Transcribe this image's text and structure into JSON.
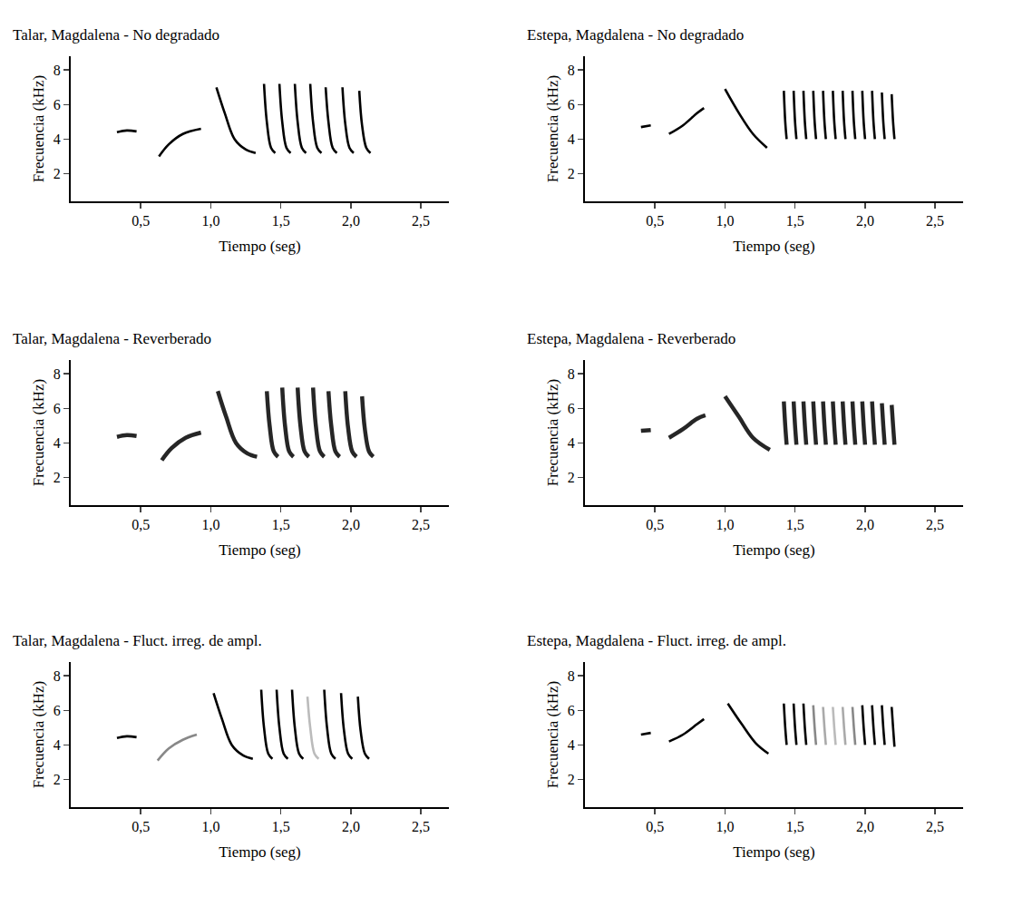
{
  "chart_data": [
    {
      "type": "line",
      "title": "Talar, Magdalena - No degradado",
      "xlabel": "Tiempo (seg)",
      "ylabel": "Frecuencia (kHz)",
      "xlim": [
        0,
        2.7
      ],
      "ylim": [
        0.4,
        8.8
      ],
      "xticks": [
        {
          "value": 0.5,
          "label": "0,5"
        },
        {
          "value": 1.0,
          "label": "1,0"
        },
        {
          "value": 1.5,
          "label": "1,5"
        },
        {
          "value": 2.0,
          "label": "2,0"
        },
        {
          "value": 2.5,
          "label": "2,5"
        }
      ],
      "yticks": [
        2,
        4,
        6,
        8
      ],
      "color": "#000000",
      "series": [
        {
          "x": [
            0.33,
            0.4,
            0.47
          ],
          "values": [
            4.4,
            4.5,
            4.45
          ]
        },
        {
          "x": [
            0.63,
            0.7,
            0.8,
            0.93
          ],
          "values": [
            3.0,
            3.7,
            4.3,
            4.6
          ]
        },
        {
          "x": [
            1.04,
            1.1,
            1.17,
            1.25,
            1.32
          ],
          "values": [
            7.0,
            5.5,
            4.0,
            3.4,
            3.2
          ]
        },
        {
          "x": [
            1.38,
            1.4,
            1.43,
            1.46
          ],
          "values": [
            7.2,
            5.0,
            3.5,
            3.2
          ]
        },
        {
          "x": [
            1.49,
            1.51,
            1.54,
            1.57
          ],
          "values": [
            7.2,
            5.0,
            3.5,
            3.2
          ]
        },
        {
          "x": [
            1.6,
            1.62,
            1.65,
            1.68
          ],
          "values": [
            7.2,
            5.0,
            3.5,
            3.2
          ]
        },
        {
          "x": [
            1.71,
            1.73,
            1.76,
            1.79
          ],
          "values": [
            7.2,
            5.0,
            3.5,
            3.2
          ]
        },
        {
          "x": [
            1.82,
            1.84,
            1.87,
            1.9
          ],
          "values": [
            7.0,
            5.0,
            3.5,
            3.2
          ]
        },
        {
          "x": [
            1.94,
            1.96,
            1.99,
            2.02
          ],
          "values": [
            7.0,
            4.9,
            3.5,
            3.2
          ]
        },
        {
          "x": [
            2.06,
            2.08,
            2.11,
            2.14
          ],
          "values": [
            6.8,
            4.8,
            3.5,
            3.2
          ]
        }
      ]
    },
    {
      "type": "line",
      "title": "Estepa, Magdalena - No degradado",
      "xlabel": "Tiempo (seg)",
      "ylabel": "Frecuencia (kHz)",
      "xlim": [
        0,
        2.7
      ],
      "ylim": [
        0.4,
        8.8
      ],
      "xticks": [
        {
          "value": 0.5,
          "label": "0,5"
        },
        {
          "value": 1.0,
          "label": "1,0"
        },
        {
          "value": 1.5,
          "label": "1,5"
        },
        {
          "value": 2.0,
          "label": "2,0"
        },
        {
          "value": 2.5,
          "label": "2,5"
        }
      ],
      "yticks": [
        2,
        4,
        6,
        8
      ],
      "color": "#000000",
      "series": [
        {
          "x": [
            0.4,
            0.47
          ],
          "values": [
            4.7,
            4.8
          ]
        },
        {
          "x": [
            0.6,
            0.7,
            0.8,
            0.85
          ],
          "values": [
            4.3,
            4.8,
            5.5,
            5.8
          ]
        },
        {
          "x": [
            1.0,
            1.1,
            1.2,
            1.3
          ],
          "values": [
            6.9,
            5.5,
            4.3,
            3.5
          ]
        },
        {
          "x": [
            1.42,
            1.43,
            1.44
          ],
          "values": [
            6.8,
            5.0,
            4.0
          ]
        },
        {
          "x": [
            1.49,
            1.5,
            1.51
          ],
          "values": [
            6.8,
            5.0,
            4.0
          ]
        },
        {
          "x": [
            1.56,
            1.57,
            1.58
          ],
          "values": [
            6.8,
            5.0,
            4.0
          ]
        },
        {
          "x": [
            1.63,
            1.64,
            1.65
          ],
          "values": [
            6.8,
            5.0,
            4.0
          ]
        },
        {
          "x": [
            1.7,
            1.71,
            1.72
          ],
          "values": [
            6.8,
            5.0,
            4.0
          ]
        },
        {
          "x": [
            1.77,
            1.78,
            1.79
          ],
          "values": [
            6.8,
            5.0,
            4.0
          ]
        },
        {
          "x": [
            1.84,
            1.85,
            1.86
          ],
          "values": [
            6.8,
            5.0,
            4.0
          ]
        },
        {
          "x": [
            1.91,
            1.92,
            1.93
          ],
          "values": [
            6.8,
            5.0,
            4.0
          ]
        },
        {
          "x": [
            1.98,
            1.99,
            2.0
          ],
          "values": [
            6.8,
            5.0,
            4.0
          ]
        },
        {
          "x": [
            2.05,
            2.06,
            2.07
          ],
          "values": [
            6.8,
            5.0,
            4.0
          ]
        },
        {
          "x": [
            2.12,
            2.13,
            2.14
          ],
          "values": [
            6.7,
            5.0,
            4.0
          ]
        },
        {
          "x": [
            2.19,
            2.2,
            2.21
          ],
          "values": [
            6.6,
            5.0,
            4.0
          ]
        }
      ]
    },
    {
      "type": "line",
      "title": "Talar, Magdalena - Reverberado",
      "xlabel": "Tiempo (seg)",
      "ylabel": "Frecuencia (kHz)",
      "xlim": [
        0,
        2.7
      ],
      "ylim": [
        0.4,
        8.8
      ],
      "xticks": [
        {
          "value": 0.5,
          "label": "0,5"
        },
        {
          "value": 1.0,
          "label": "1,0"
        },
        {
          "value": 1.5,
          "label": "1,5"
        },
        {
          "value": 2.0,
          "label": "2,0"
        },
        {
          "value": 2.5,
          "label": "2,5"
        }
      ],
      "yticks": [
        2,
        4,
        6,
        8
      ],
      "color": "#000000",
      "series": [
        {
          "x": [
            0.33,
            0.4,
            0.47
          ],
          "values": [
            4.35,
            4.45,
            4.4
          ]
        },
        {
          "x": [
            0.65,
            0.72,
            0.82,
            0.93
          ],
          "values": [
            3.0,
            3.7,
            4.3,
            4.6
          ]
        },
        {
          "x": [
            1.05,
            1.11,
            1.18,
            1.26,
            1.33
          ],
          "values": [
            7.0,
            5.5,
            4.0,
            3.4,
            3.2
          ]
        },
        {
          "x": [
            1.4,
            1.42,
            1.45,
            1.48
          ],
          "values": [
            7.0,
            5.0,
            3.5,
            3.2
          ]
        },
        {
          "x": [
            1.51,
            1.53,
            1.56,
            1.59
          ],
          "values": [
            7.2,
            5.0,
            3.5,
            3.2
          ]
        },
        {
          "x": [
            1.62,
            1.64,
            1.67,
            1.7
          ],
          "values": [
            7.2,
            5.0,
            3.5,
            3.2
          ]
        },
        {
          "x": [
            1.73,
            1.75,
            1.78,
            1.81
          ],
          "values": [
            7.2,
            5.0,
            3.5,
            3.2
          ]
        },
        {
          "x": [
            1.84,
            1.86,
            1.89,
            1.92
          ],
          "values": [
            7.0,
            5.0,
            3.5,
            3.2
          ]
        },
        {
          "x": [
            1.96,
            1.98,
            2.01,
            2.04
          ],
          "values": [
            7.0,
            4.9,
            3.5,
            3.2
          ]
        },
        {
          "x": [
            2.08,
            2.1,
            2.13,
            2.16
          ],
          "values": [
            6.7,
            4.8,
            3.5,
            3.2
          ]
        }
      ]
    },
    {
      "type": "line",
      "title": "Estepa, Magdalena - Reverberado",
      "xlabel": "Tiempo (seg)",
      "ylabel": "Frecuencia (kHz)",
      "xlim": [
        0,
        2.7
      ],
      "ylim": [
        0.4,
        8.8
      ],
      "xticks": [
        {
          "value": 0.5,
          "label": "0,5"
        },
        {
          "value": 1.0,
          "label": "1,0"
        },
        {
          "value": 1.5,
          "label": "1,5"
        },
        {
          "value": 2.0,
          "label": "2,0"
        },
        {
          "value": 2.5,
          "label": "2,5"
        }
      ],
      "yticks": [
        2,
        4,
        6,
        8
      ],
      "color": "#000000",
      "series": [
        {
          "x": [
            0.4,
            0.47
          ],
          "values": [
            4.7,
            4.75
          ]
        },
        {
          "x": [
            0.6,
            0.7,
            0.8,
            0.86
          ],
          "values": [
            4.3,
            4.8,
            5.4,
            5.6
          ]
        },
        {
          "x": [
            1.0,
            1.1,
            1.2,
            1.32
          ],
          "values": [
            6.7,
            5.5,
            4.3,
            3.6
          ]
        },
        {
          "x": [
            1.42,
            1.43,
            1.44
          ],
          "values": [
            6.4,
            5.0,
            3.9
          ]
        },
        {
          "x": [
            1.49,
            1.5,
            1.51
          ],
          "values": [
            6.4,
            5.0,
            3.9
          ]
        },
        {
          "x": [
            1.56,
            1.57,
            1.58
          ],
          "values": [
            6.4,
            5.0,
            3.9
          ]
        },
        {
          "x": [
            1.63,
            1.64,
            1.65
          ],
          "values": [
            6.4,
            5.0,
            3.9
          ]
        },
        {
          "x": [
            1.7,
            1.71,
            1.72
          ],
          "values": [
            6.4,
            5.0,
            3.9
          ]
        },
        {
          "x": [
            1.77,
            1.78,
            1.79
          ],
          "values": [
            6.4,
            5.0,
            3.9
          ]
        },
        {
          "x": [
            1.84,
            1.85,
            1.86
          ],
          "values": [
            6.4,
            5.0,
            3.9
          ]
        },
        {
          "x": [
            1.91,
            1.92,
            1.93
          ],
          "values": [
            6.4,
            5.0,
            3.9
          ]
        },
        {
          "x": [
            1.98,
            1.99,
            2.0
          ],
          "values": [
            6.4,
            5.0,
            3.9
          ]
        },
        {
          "x": [
            2.05,
            2.06,
            2.07
          ],
          "values": [
            6.4,
            5.0,
            3.9
          ]
        },
        {
          "x": [
            2.12,
            2.13,
            2.14
          ],
          "values": [
            6.3,
            5.0,
            3.9
          ]
        },
        {
          "x": [
            2.19,
            2.2,
            2.21
          ],
          "values": [
            6.2,
            5.0,
            3.9
          ]
        }
      ]
    },
    {
      "type": "line",
      "title": "Talar, Magdalena - Fluct. irreg. de ampl.",
      "xlabel": "Tiempo (seg)",
      "ylabel": "Frecuencia (kHz)",
      "xlim": [
        0,
        2.7
      ],
      "ylim": [
        0.4,
        8.8
      ],
      "xticks": [
        {
          "value": 0.5,
          "label": "0,5"
        },
        {
          "value": 1.0,
          "label": "1,0"
        },
        {
          "value": 1.5,
          "label": "1,5"
        },
        {
          "value": 2.0,
          "label": "2,0"
        },
        {
          "value": 2.5,
          "label": "2,5"
        }
      ],
      "yticks": [
        2,
        4,
        6,
        8
      ],
      "color": "#000000",
      "series": [
        {
          "x": [
            0.33,
            0.4,
            0.47
          ],
          "values": [
            4.4,
            4.5,
            4.45
          ]
        },
        {
          "x": [
            0.62,
            0.7,
            0.8,
            0.9
          ],
          "values": [
            3.1,
            3.8,
            4.3,
            4.6
          ],
          "color": "#888888"
        },
        {
          "x": [
            1.02,
            1.08,
            1.15,
            1.23,
            1.3
          ],
          "values": [
            7.0,
            5.5,
            4.0,
            3.4,
            3.2
          ]
        },
        {
          "x": [
            1.36,
            1.38,
            1.41,
            1.44
          ],
          "values": [
            7.2,
            5.0,
            3.5,
            3.2
          ]
        },
        {
          "x": [
            1.47,
            1.49,
            1.52,
            1.55
          ],
          "values": [
            7.2,
            5.0,
            3.5,
            3.2
          ]
        },
        {
          "x": [
            1.58,
            1.6,
            1.63,
            1.66
          ],
          "values": [
            7.2,
            5.0,
            3.5,
            3.2
          ]
        },
        {
          "x": [
            1.69,
            1.71,
            1.74,
            1.77
          ],
          "values": [
            6.8,
            5.0,
            3.5,
            3.2
          ],
          "color": "#bbbbbb"
        },
        {
          "x": [
            1.81,
            1.83,
            1.86,
            1.89
          ],
          "values": [
            7.2,
            5.0,
            3.5,
            3.2
          ]
        },
        {
          "x": [
            1.93,
            1.95,
            1.98,
            2.01
          ],
          "values": [
            7.0,
            4.9,
            3.5,
            3.2
          ]
        },
        {
          "x": [
            2.05,
            2.07,
            2.1,
            2.13
          ],
          "values": [
            6.8,
            4.8,
            3.5,
            3.2
          ]
        }
      ]
    },
    {
      "type": "line",
      "title": "Estepa, Magdalena - Fluct. irreg. de ampl.",
      "xlabel": "Tiempo (seg)",
      "ylabel": "Frecuencia (kHz)",
      "xlim": [
        0,
        2.7
      ],
      "ylim": [
        0.4,
        8.8
      ],
      "xticks": [
        {
          "value": 0.5,
          "label": "0,5"
        },
        {
          "value": 1.0,
          "label": "1,0"
        },
        {
          "value": 1.5,
          "label": "1,5"
        },
        {
          "value": 2.0,
          "label": "2,0"
        },
        {
          "value": 2.5,
          "label": "2,5"
        }
      ],
      "yticks": [
        2,
        4,
        6,
        8
      ],
      "color": "#000000",
      "series": [
        {
          "x": [
            0.4,
            0.47
          ],
          "values": [
            4.6,
            4.7
          ]
        },
        {
          "x": [
            0.6,
            0.7,
            0.8,
            0.85
          ],
          "values": [
            4.2,
            4.6,
            5.2,
            5.5
          ]
        },
        {
          "x": [
            1.02,
            1.12,
            1.22,
            1.31
          ],
          "values": [
            6.4,
            5.2,
            4.1,
            3.5
          ]
        },
        {
          "x": [
            1.42,
            1.43,
            1.44
          ],
          "values": [
            6.4,
            5.0,
            4.0
          ]
        },
        {
          "x": [
            1.49,
            1.5,
            1.51
          ],
          "values": [
            6.4,
            5.0,
            4.0
          ]
        },
        {
          "x": [
            1.56,
            1.57,
            1.58
          ],
          "values": [
            6.4,
            5.0,
            4.0
          ]
        },
        {
          "x": [
            1.63,
            1.64,
            1.65
          ],
          "values": [
            6.3,
            5.0,
            4.0
          ],
          "color": "#888888"
        },
        {
          "x": [
            1.7,
            1.71,
            1.72
          ],
          "values": [
            6.2,
            5.0,
            4.0
          ],
          "color": "#aaaaaa"
        },
        {
          "x": [
            1.77,
            1.78,
            1.79
          ],
          "values": [
            6.2,
            5.0,
            4.0
          ],
          "color": "#bbbbbb"
        },
        {
          "x": [
            1.84,
            1.85,
            1.86
          ],
          "values": [
            6.2,
            5.0,
            4.0
          ],
          "color": "#aaaaaa"
        },
        {
          "x": [
            1.91,
            1.92,
            1.93
          ],
          "values": [
            6.2,
            5.0,
            4.0
          ],
          "color": "#888888"
        },
        {
          "x": [
            1.98,
            1.99,
            2.0
          ],
          "values": [
            6.3,
            5.0,
            4.0
          ]
        },
        {
          "x": [
            2.05,
            2.06,
            2.07
          ],
          "values": [
            6.3,
            5.0,
            4.0
          ]
        },
        {
          "x": [
            2.12,
            2.13,
            2.14
          ],
          "values": [
            6.3,
            5.0,
            4.0
          ]
        },
        {
          "x": [
            2.19,
            2.2,
            2.21
          ],
          "values": [
            6.2,
            5.0,
            3.9
          ]
        }
      ]
    }
  ]
}
